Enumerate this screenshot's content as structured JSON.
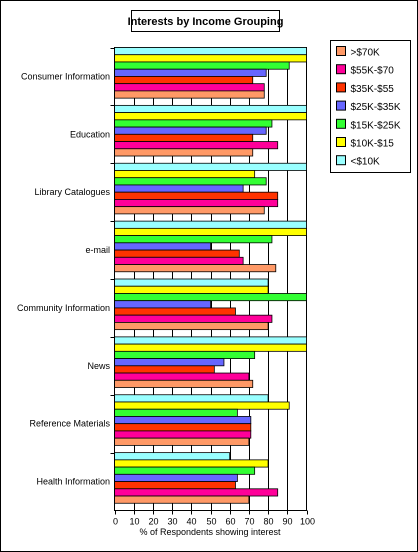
{
  "chart_data": {
    "type": "bar",
    "orientation": "horizontal",
    "title": "Interests by Income Grouping",
    "xlabel": "% of Respondents showing interest",
    "xlim": [
      0,
      100
    ],
    "xticks": [
      "0",
      "10",
      "20",
      "30",
      "40",
      "50",
      "60",
      "70",
      "80",
      "90",
      "100"
    ],
    "grid": "vertical",
    "legend_position": "right",
    "categories": [
      "Consumer Information",
      "Education",
      "Library Catalogues",
      "e-mail",
      "Community Information",
      "News",
      "Reference Materials",
      "Health Information"
    ],
    "series": [
      {
        "name": "<$10K",
        "color": "#99ffff",
        "values": [
          100,
          100,
          100,
          100,
          80,
          100,
          80,
          60
        ]
      },
      {
        "name": "$10K-$15",
        "color": "#ffff00",
        "values": [
          100,
          100,
          73,
          100,
          80,
          100,
          91,
          80
        ]
      },
      {
        "name": "$15K-$25K",
        "color": "#33ff33",
        "values": [
          91,
          82,
          79,
          82,
          100,
          73,
          64,
          73
        ]
      },
      {
        "name": "$25K-$35K",
        "color": "#6666ff",
        "values": [
          79,
          79,
          67,
          50,
          50,
          57,
          71,
          64
        ]
      },
      {
        "name": "$35K-$55",
        "color": "#ff3300",
        "values": [
          72,
          72,
          85,
          65,
          63,
          52,
          71,
          63
        ]
      },
      {
        "name": "$55K-$70",
        "color": "#ff0099",
        "values": [
          78,
          85,
          85,
          67,
          82,
          70,
          71,
          85
        ]
      },
      {
        "name": ">$70K",
        "color": "#ff9966",
        "values": [
          78,
          72,
          78,
          84,
          80,
          72,
          70,
          70
        ]
      }
    ]
  }
}
